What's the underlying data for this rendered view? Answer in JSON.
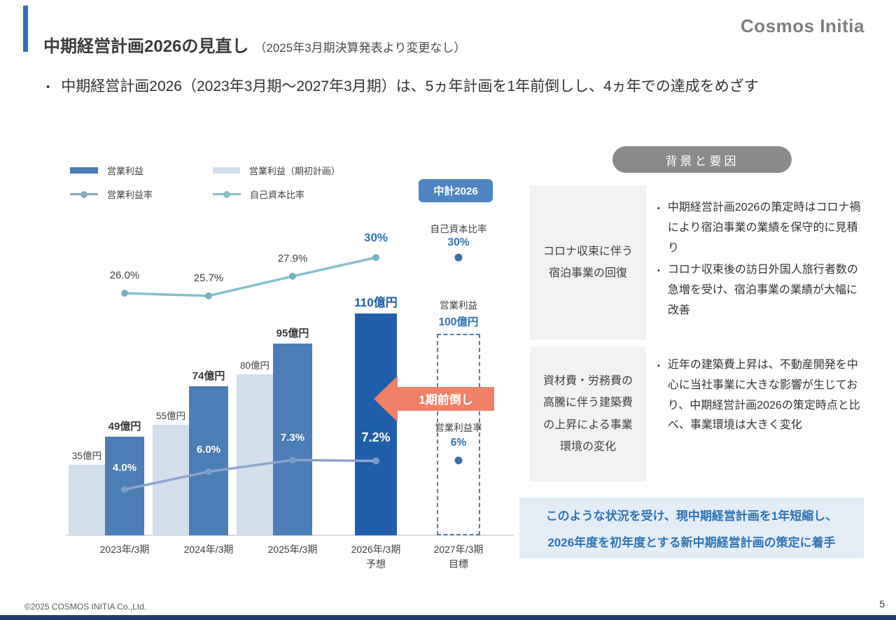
{
  "slide": {
    "logo": "Cosmos Initia",
    "title": "中期経営計画2026の見直し",
    "title_note": "（2025年3月期決算発表より変更なし）",
    "bullet": "中期経営計画2026（2023年3月期～2027年3月期）は、5ヵ年計画を1年前倒しし、4ヵ年での達成をめざす",
    "footer": "©2025 COSMOS INITIA Co.,Ltd.",
    "page_number": "5"
  },
  "chart": {
    "badge_label": "中計2026",
    "arrow_label": "1期前倒し",
    "legend": [
      {
        "label": "営業利益",
        "type": "bar",
        "color": "#4A7EB5"
      },
      {
        "label": "営業利益（期初計画）",
        "type": "bar",
        "color": "#D3DEEC"
      },
      {
        "label": "営業利益率",
        "type": "line",
        "color": "#8CA5CE"
      },
      {
        "label": "自己資本比率",
        "type": "line",
        "color": "#85C1CB"
      }
    ]
  },
  "chart_data": {
    "type": "bar",
    "title": "中計2026",
    "categories": [
      "2023年/3期",
      "2024年/3期",
      "2025年/3期",
      "2026年/3期\n予想",
      "2027年/3期\n目標"
    ],
    "series": [
      {
        "name": "営業利益（期初計画）",
        "type": "bar",
        "color": "#D3DEEC",
        "unit": "億円",
        "values": [
          35,
          55,
          80,
          null,
          null
        ],
        "labels": [
          "35億円",
          "55億円",
          "80億円",
          "",
          ""
        ]
      },
      {
        "name": "営業利益",
        "type": "bar",
        "color": "#4A7EB5",
        "unit": "億円",
        "values": [
          49,
          74,
          95,
          110,
          100
        ],
        "labels": [
          "49億円",
          "74億円",
          "95億円",
          "110億円",
          "100億円"
        ],
        "styles": [
          "actual",
          "actual",
          "actual",
          "forecast",
          "target"
        ]
      },
      {
        "name": "営業利益率",
        "type": "line",
        "color": "#8CA5CE",
        "unit": "%",
        "values": [
          4.0,
          6.0,
          7.3,
          7.2,
          6.0
        ],
        "labels": [
          "4.0%",
          "6.0%",
          "7.3%",
          "7.2%",
          "6%"
        ]
      },
      {
        "name": "自己資本比率",
        "type": "line",
        "color": "#85C1CB",
        "unit": "%",
        "values": [
          26.0,
          25.7,
          27.9,
          30.0,
          30.0
        ],
        "labels": [
          "26.0%",
          "25.7%",
          "27.9%",
          "30%",
          "30%"
        ]
      }
    ],
    "target_annotations": {
      "equity_title": "自己資本比率",
      "equity_value": "30%",
      "profit_title": "営業利益",
      "profit_value": "100億円",
      "rate_title": "営業利益率",
      "rate_value": "6%"
    },
    "ylim_bar": [
      0,
      120
    ],
    "grid": false,
    "legend_position": "top-left"
  },
  "right_panel": {
    "header": "背景と要因",
    "rows": [
      {
        "label": "コロナ収束に伴う宿泊事業の回復",
        "bullets": [
          "中期経営計画2026の策定時はコロナ禍により宿泊事業の業績を保守的に見積り",
          "コロナ収束後の訪日外国人旅行者数の急増を受け、宿泊事業の業績が大幅に改善"
        ]
      },
      {
        "label": "資材費・労務費の高騰に伴う建築費の上昇による事業環境の変化",
        "bullets": [
          "近年の建築費上昇は、不動産開発を中心に当社事業に大きな影響が生じており、中期経営計画2026の策定時点と比べ、事業環境は大きく変化"
        ]
      }
    ],
    "conclusion": {
      "lines": [
        "このような状況を受け、現中期経営計画を1年短縮し、",
        "2026年度を初年度とする新中期経営計画の策定に着手"
      ]
    }
  },
  "colors": {
    "accent_blue": "#2E74B5",
    "forecast_navy": "#1F5EA8",
    "actual_blue": "#4A7EB5",
    "plan_light_blue": "#D3DEEC",
    "rate_line": "#8CA5CE",
    "equity_line": "#85C1CB",
    "target_dot_blue": "#3C6EA5",
    "arrow_salmon": "#F08167",
    "header_pill_gray": "#8A8A8A",
    "label_box_gray": "#F2F2F2",
    "conclusion_bg": "#E4EDF6",
    "footer_strip_navy": "#1F3A68"
  }
}
